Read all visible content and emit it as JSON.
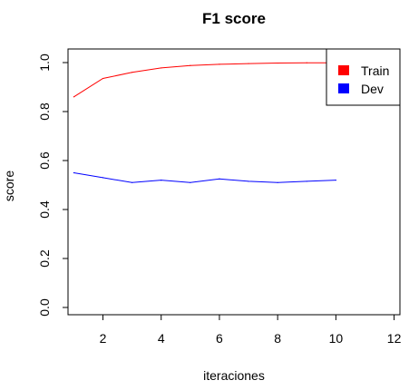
{
  "chart_data": {
    "type": "line",
    "title": "F1 score",
    "xlabel": "iteraciones",
    "ylabel": "score",
    "xlim": [
      0.8,
      12.2
    ],
    "ylim": [
      0.0,
      1.0
    ],
    "xticks": [
      2,
      4,
      6,
      8,
      10,
      12
    ],
    "xtick_labels": [
      "2",
      "4",
      "6",
      "8",
      "10",
      "12"
    ],
    "yticks": [
      0.0,
      0.2,
      0.4,
      0.6,
      0.8,
      1.0
    ],
    "ytick_labels": [
      "0.0",
      "0.2",
      "0.4",
      "0.6",
      "0.8",
      "1.0"
    ],
    "grid": false,
    "legend_position": "top-right",
    "x": [
      1,
      2,
      3,
      4,
      5,
      6,
      7,
      8,
      9,
      10
    ],
    "series": [
      {
        "name": "Train",
        "color": "#ff0000",
        "values": [
          0.86,
          0.935,
          0.96,
          0.978,
          0.988,
          0.993,
          0.996,
          0.998,
          0.999,
          0.999
        ]
      },
      {
        "name": "Dev",
        "color": "#0000ff",
        "values": [
          0.55,
          0.53,
          0.51,
          0.52,
          0.51,
          0.525,
          0.515,
          0.51,
          0.515,
          0.52
        ]
      }
    ]
  }
}
